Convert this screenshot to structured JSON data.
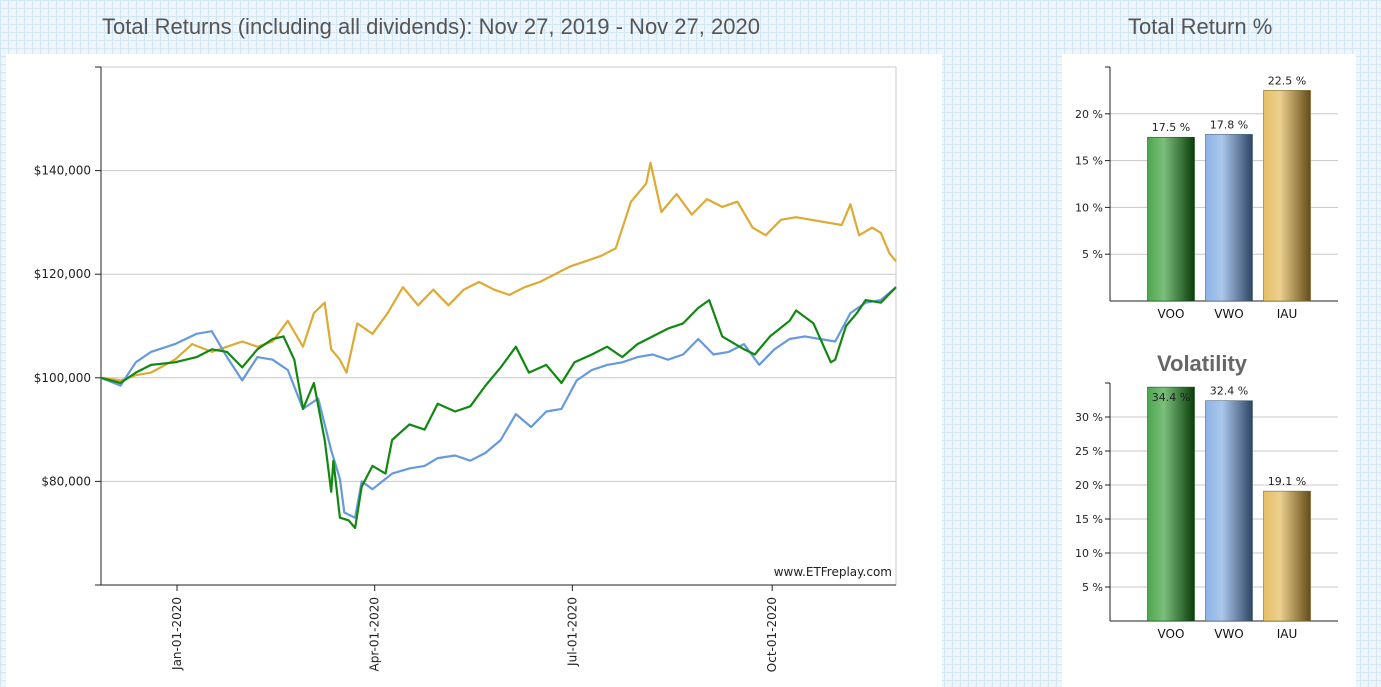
{
  "header": {
    "main_title": "Total Returns (including all dividends): Nov 27, 2019 - Nov 27, 2020",
    "side_title": "Total Return %"
  },
  "chart_data": [
    {
      "type": "line",
      "title": "Total Returns (including all dividends): Nov 27, 2019 - Nov 27, 2020",
      "watermark": "www.ETFreplay.com",
      "y_ticks": [
        {
          "value": 80000,
          "label": "$80,000"
        },
        {
          "value": 100000,
          "label": "$100,000"
        },
        {
          "value": 120000,
          "label": "$120,000"
        },
        {
          "value": 140000,
          "label": "$140,000"
        }
      ],
      "x_ticks": [
        {
          "date": "2020-01-01",
          "label": "Jan-01-2020"
        },
        {
          "date": "2020-04-01",
          "label": "Apr-01-2020"
        },
        {
          "date": "2020-07-01",
          "label": "Jul-01-2020"
        },
        {
          "date": "2020-10-01",
          "label": "Oct-01-2020"
        }
      ],
      "xlim": [
        "2019-11-27",
        "2020-11-27"
      ],
      "ylim": [
        60000,
        160000
      ],
      "grid": true,
      "series": [
        {
          "name": "VOO",
          "color": "#118811",
          "points": [
            [
              "2019-11-27",
              100000
            ],
            [
              "2019-12-06",
              99000
            ],
            [
              "2019-12-13",
              101000
            ],
            [
              "2019-12-20",
              102500
            ],
            [
              "2019-12-31",
              103000
            ],
            [
              "2020-01-10",
              104000
            ],
            [
              "2020-01-17",
              105500
            ],
            [
              "2020-01-24",
              105000
            ],
            [
              "2020-01-31",
              102000
            ],
            [
              "2020-02-07",
              105500
            ],
            [
              "2020-02-14",
              107500
            ],
            [
              "2020-02-19",
              108000
            ],
            [
              "2020-02-24",
              103500
            ],
            [
              "2020-02-28",
              94000
            ],
            [
              "2020-03-04",
              99000
            ],
            [
              "2020-03-09",
              88000
            ],
            [
              "2020-03-12",
              78000
            ],
            [
              "2020-03-13",
              84000
            ],
            [
              "2020-03-16",
              73000
            ],
            [
              "2020-03-20",
              72500
            ],
            [
              "2020-03-23",
              71000
            ],
            [
              "2020-03-26",
              79000
            ],
            [
              "2020-03-31",
              83000
            ],
            [
              "2020-04-06",
              81500
            ],
            [
              "2020-04-09",
              88000
            ],
            [
              "2020-04-17",
              91000
            ],
            [
              "2020-04-24",
              90000
            ],
            [
              "2020-04-30",
              95000
            ],
            [
              "2020-05-08",
              93500
            ],
            [
              "2020-05-15",
              94500
            ],
            [
              "2020-05-22",
              98500
            ],
            [
              "2020-05-29",
              102000
            ],
            [
              "2020-06-05",
              106000
            ],
            [
              "2020-06-11",
              101000
            ],
            [
              "2020-06-19",
              102500
            ],
            [
              "2020-06-26",
              99000
            ],
            [
              "2020-07-02",
              103000
            ],
            [
              "2020-07-10",
              104500
            ],
            [
              "2020-07-17",
              106000
            ],
            [
              "2020-07-24",
              104000
            ],
            [
              "2020-07-31",
              106500
            ],
            [
              "2020-08-07",
              108000
            ],
            [
              "2020-08-14",
              109500
            ],
            [
              "2020-08-21",
              110500
            ],
            [
              "2020-08-28",
              113500
            ],
            [
              "2020-09-02",
              115000
            ],
            [
              "2020-09-08",
              108000
            ],
            [
              "2020-09-18",
              105500
            ],
            [
              "2020-09-23",
              104500
            ],
            [
              "2020-09-30",
              108000
            ],
            [
              "2020-10-09",
              111000
            ],
            [
              "2020-10-12",
              113000
            ],
            [
              "2020-10-20",
              110500
            ],
            [
              "2020-10-28",
              103000
            ],
            [
              "2020-10-30",
              103500
            ],
            [
              "2020-11-04",
              110000
            ],
            [
              "2020-11-09",
              112500
            ],
            [
              "2020-11-13",
              115000
            ],
            [
              "2020-11-20",
              114500
            ],
            [
              "2020-11-27",
              117500
            ]
          ]
        },
        {
          "name": "VWO",
          "color": "#6699dd",
          "points": [
            [
              "2019-11-27",
              100000
            ],
            [
              "2019-12-06",
              98500
            ],
            [
              "2019-12-13",
              103000
            ],
            [
              "2019-12-20",
              105000
            ],
            [
              "2019-12-31",
              106500
            ],
            [
              "2020-01-10",
              108500
            ],
            [
              "2020-01-17",
              109000
            ],
            [
              "2020-01-24",
              104000
            ],
            [
              "2020-01-31",
              99500
            ],
            [
              "2020-02-07",
              104000
            ],
            [
              "2020-02-14",
              103500
            ],
            [
              "2020-02-21",
              101500
            ],
            [
              "2020-02-28",
              94000
            ],
            [
              "2020-03-06",
              96000
            ],
            [
              "2020-03-12",
              86000
            ],
            [
              "2020-03-16",
              80500
            ],
            [
              "2020-03-18",
              74000
            ],
            [
              "2020-03-23",
              73000
            ],
            [
              "2020-03-26",
              80000
            ],
            [
              "2020-03-31",
              78500
            ],
            [
              "2020-04-09",
              81500
            ],
            [
              "2020-04-17",
              82500
            ],
            [
              "2020-04-24",
              83000
            ],
            [
              "2020-04-30",
              84500
            ],
            [
              "2020-05-08",
              85000
            ],
            [
              "2020-05-15",
              84000
            ],
            [
              "2020-05-22",
              85500
            ],
            [
              "2020-05-29",
              88000
            ],
            [
              "2020-06-05",
              93000
            ],
            [
              "2020-06-12",
              90500
            ],
            [
              "2020-06-19",
              93500
            ],
            [
              "2020-06-26",
              94000
            ],
            [
              "2020-07-03",
              99500
            ],
            [
              "2020-07-10",
              101500
            ],
            [
              "2020-07-17",
              102500
            ],
            [
              "2020-07-24",
              103000
            ],
            [
              "2020-07-31",
              104000
            ],
            [
              "2020-08-07",
              104500
            ],
            [
              "2020-08-14",
              103500
            ],
            [
              "2020-08-21",
              104500
            ],
            [
              "2020-08-28",
              107500
            ],
            [
              "2020-09-04",
              104500
            ],
            [
              "2020-09-11",
              105000
            ],
            [
              "2020-09-18",
              106500
            ],
            [
              "2020-09-25",
              102500
            ],
            [
              "2020-10-02",
              105500
            ],
            [
              "2020-10-09",
              107500
            ],
            [
              "2020-10-16",
              108000
            ],
            [
              "2020-10-23",
              107500
            ],
            [
              "2020-10-30",
              107000
            ],
            [
              "2020-11-06",
              112500
            ],
            [
              "2020-11-13",
              114500
            ],
            [
              "2020-11-20",
              115000
            ],
            [
              "2020-11-27",
              117500
            ]
          ]
        },
        {
          "name": "IAU",
          "color": "#ddaa33",
          "points": [
            [
              "2019-11-27",
              100000
            ],
            [
              "2019-12-06",
              99500
            ],
            [
              "2019-12-13",
              100500
            ],
            [
              "2019-12-20",
              101000
            ],
            [
              "2019-12-31",
              103500
            ],
            [
              "2020-01-08",
              106500
            ],
            [
              "2020-01-17",
              105000
            ],
            [
              "2020-01-24",
              106000
            ],
            [
              "2020-01-31",
              107000
            ],
            [
              "2020-02-07",
              106000
            ],
            [
              "2020-02-14",
              107000
            ],
            [
              "2020-02-21",
              111000
            ],
            [
              "2020-02-28",
              106000
            ],
            [
              "2020-03-04",
              112500
            ],
            [
              "2020-03-09",
              114500
            ],
            [
              "2020-03-12",
              105500
            ],
            [
              "2020-03-16",
              103500
            ],
            [
              "2020-03-19",
              101000
            ],
            [
              "2020-03-24",
              110500
            ],
            [
              "2020-03-31",
              108500
            ],
            [
              "2020-04-07",
              112500
            ],
            [
              "2020-04-14",
              117500
            ],
            [
              "2020-04-21",
              114000
            ],
            [
              "2020-04-28",
              117000
            ],
            [
              "2020-05-05",
              114000
            ],
            [
              "2020-05-12",
              117000
            ],
            [
              "2020-05-19",
              118500
            ],
            [
              "2020-05-26",
              117000
            ],
            [
              "2020-06-02",
              116000
            ],
            [
              "2020-06-09",
              117500
            ],
            [
              "2020-06-16",
              118500
            ],
            [
              "2020-06-23",
              120000
            ],
            [
              "2020-06-30",
              121500
            ],
            [
              "2020-07-07",
              122500
            ],
            [
              "2020-07-14",
              123500
            ],
            [
              "2020-07-21",
              125000
            ],
            [
              "2020-07-28",
              134000
            ],
            [
              "2020-08-04",
              137500
            ],
            [
              "2020-08-06",
              141500
            ],
            [
              "2020-08-11",
              132000
            ],
            [
              "2020-08-18",
              135500
            ],
            [
              "2020-08-25",
              131500
            ],
            [
              "2020-09-01",
              134500
            ],
            [
              "2020-09-08",
              133000
            ],
            [
              "2020-09-15",
              134000
            ],
            [
              "2020-09-22",
              129000
            ],
            [
              "2020-09-28",
              127500
            ],
            [
              "2020-10-05",
              130500
            ],
            [
              "2020-10-12",
              131000
            ],
            [
              "2020-10-19",
              130500
            ],
            [
              "2020-10-26",
              130000
            ],
            [
              "2020-11-02",
              129500
            ],
            [
              "2020-11-06",
              133500
            ],
            [
              "2020-11-10",
              127500
            ],
            [
              "2020-11-16",
              129000
            ],
            [
              "2020-11-20",
              128000
            ],
            [
              "2020-11-24",
              124000
            ],
            [
              "2020-11-27",
              122500
            ]
          ]
        }
      ]
    },
    {
      "type": "bar",
      "title": "Total Return %",
      "categories": [
        "VOO",
        "VWO",
        "IAU"
      ],
      "values": [
        17.5,
        17.8,
        22.5
      ],
      "value_labels": [
        "17.5 %",
        "17.8 %",
        "22.5 %"
      ],
      "colors": [
        "#118811",
        "#6699dd",
        "#ddaa33"
      ],
      "y_ticks": [
        {
          "value": 5,
          "label": "5 %"
        },
        {
          "value": 10,
          "label": "10 %"
        },
        {
          "value": 15,
          "label": "15 %"
        },
        {
          "value": 20,
          "label": "20 %"
        }
      ],
      "ylim": [
        0,
        25
      ]
    },
    {
      "type": "bar",
      "title": "Volatility",
      "categories": [
        "VOO",
        "VWO",
        "IAU"
      ],
      "values": [
        34.4,
        32.4,
        19.1
      ],
      "value_labels": [
        "34.4 %",
        "32.4 %",
        "19.1 %"
      ],
      "colors": [
        "#118811",
        "#6699dd",
        "#ddaa33"
      ],
      "y_ticks": [
        {
          "value": 5,
          "label": "5 %"
        },
        {
          "value": 10,
          "label": "10 %"
        },
        {
          "value": 15,
          "label": "15 %"
        },
        {
          "value": 20,
          "label": "20 %"
        },
        {
          "value": 25,
          "label": "25 %"
        },
        {
          "value": 30,
          "label": "30 %"
        }
      ],
      "ylim": [
        0,
        35
      ]
    }
  ]
}
